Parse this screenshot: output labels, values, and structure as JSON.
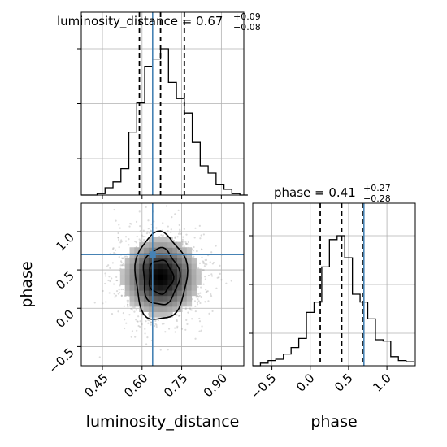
{
  "chart_data": {
    "type": "corner",
    "parameters": [
      "luminosity_distance",
      "phase"
    ],
    "truths": {
      "luminosity_distance": 0.64,
      "phase": 0.7
    },
    "grid": true,
    "panels": {
      "luminosity_distance_hist": {
        "title_main": "luminosity_distance = 0.67",
        "title_sup": "+0.09",
        "title_sub": "−0.08",
        "xlim": [
          0.37,
          0.985
        ],
        "ylim": [
          0,
          1.0
        ],
        "bin_edges": [
          0.37,
          0.4,
          0.43,
          0.46,
          0.49,
          0.52,
          0.55,
          0.58,
          0.61,
          0.64,
          0.67,
          0.7,
          0.73,
          0.76,
          0.79,
          0.82,
          0.85,
          0.88,
          0.91,
          0.94,
          0.97,
          1.0
        ],
        "counts": [
          0.0,
          0.0,
          0.01,
          0.05,
          0.09,
          0.18,
          0.43,
          0.63,
          0.88,
          0.93,
          1.0,
          0.77,
          0.66,
          0.56,
          0.36,
          0.2,
          0.15,
          0.07,
          0.04,
          0.01,
          0.0
        ],
        "quantiles": [
          0.59,
          0.67,
          0.76
        ],
        "truth": 0.64
      },
      "phase_hist": {
        "title_main": "phase = 0.41",
        "title_sup": "+0.27",
        "title_sub": "−0.28",
        "xlim": [
          -0.75,
          1.37
        ],
        "ylim": [
          0,
          1.0
        ],
        "xticks": [
          -0.5,
          0.0,
          0.5,
          1.0
        ],
        "xtick_labels": [
          "−0.5",
          "0.0",
          "0.5",
          "1.0"
        ],
        "bin_edges": [
          -0.75,
          -0.65,
          -0.55,
          -0.45,
          -0.35,
          -0.25,
          -0.15,
          -0.05,
          0.05,
          0.15,
          0.25,
          0.35,
          0.45,
          0.55,
          0.65,
          0.75,
          0.85,
          0.95,
          1.05,
          1.15,
          1.25,
          1.35
        ],
        "counts": [
          0.0,
          0.02,
          0.04,
          0.05,
          0.09,
          0.14,
          0.21,
          0.41,
          0.49,
          0.76,
          0.97,
          1.0,
          0.83,
          0.55,
          0.49,
          0.36,
          0.2,
          0.19,
          0.07,
          0.04,
          0.03
        ],
        "quantiles": [
          0.13,
          0.41,
          0.68
        ],
        "truth": 0.7
      },
      "joint": {
        "xlim": [
          0.37,
          0.985
        ],
        "ylim": [
          -0.75,
          1.37
        ],
        "xticks": [
          0.45,
          0.6,
          0.75,
          0.9
        ],
        "xtick_labels": [
          "0.45",
          "0.60",
          "0.75",
          "0.90"
        ],
        "yticks": [
          -0.5,
          0.0,
          0.5,
          1.0
        ],
        "ytick_labels": [
          "−0.5",
          "0.0",
          "0.5",
          "1.0"
        ],
        "xlabel": "luminosity_distance",
        "ylabel": "phase",
        "truth": [
          0.64,
          0.7
        ],
        "center": [
          0.67,
          0.41
        ],
        "contours": [
          {
            "level": "outer",
            "rx": 0.098,
            "ry": 0.57,
            "wobble": 0.08
          },
          {
            "level": "middle",
            "rx": 0.068,
            "ry": 0.37,
            "wobble": 0.1
          },
          {
            "level": "inner",
            "rx": 0.045,
            "ry": 0.22,
            "wobble": 0.12
          }
        ]
      }
    },
    "phase_xlabel": "phase"
  }
}
